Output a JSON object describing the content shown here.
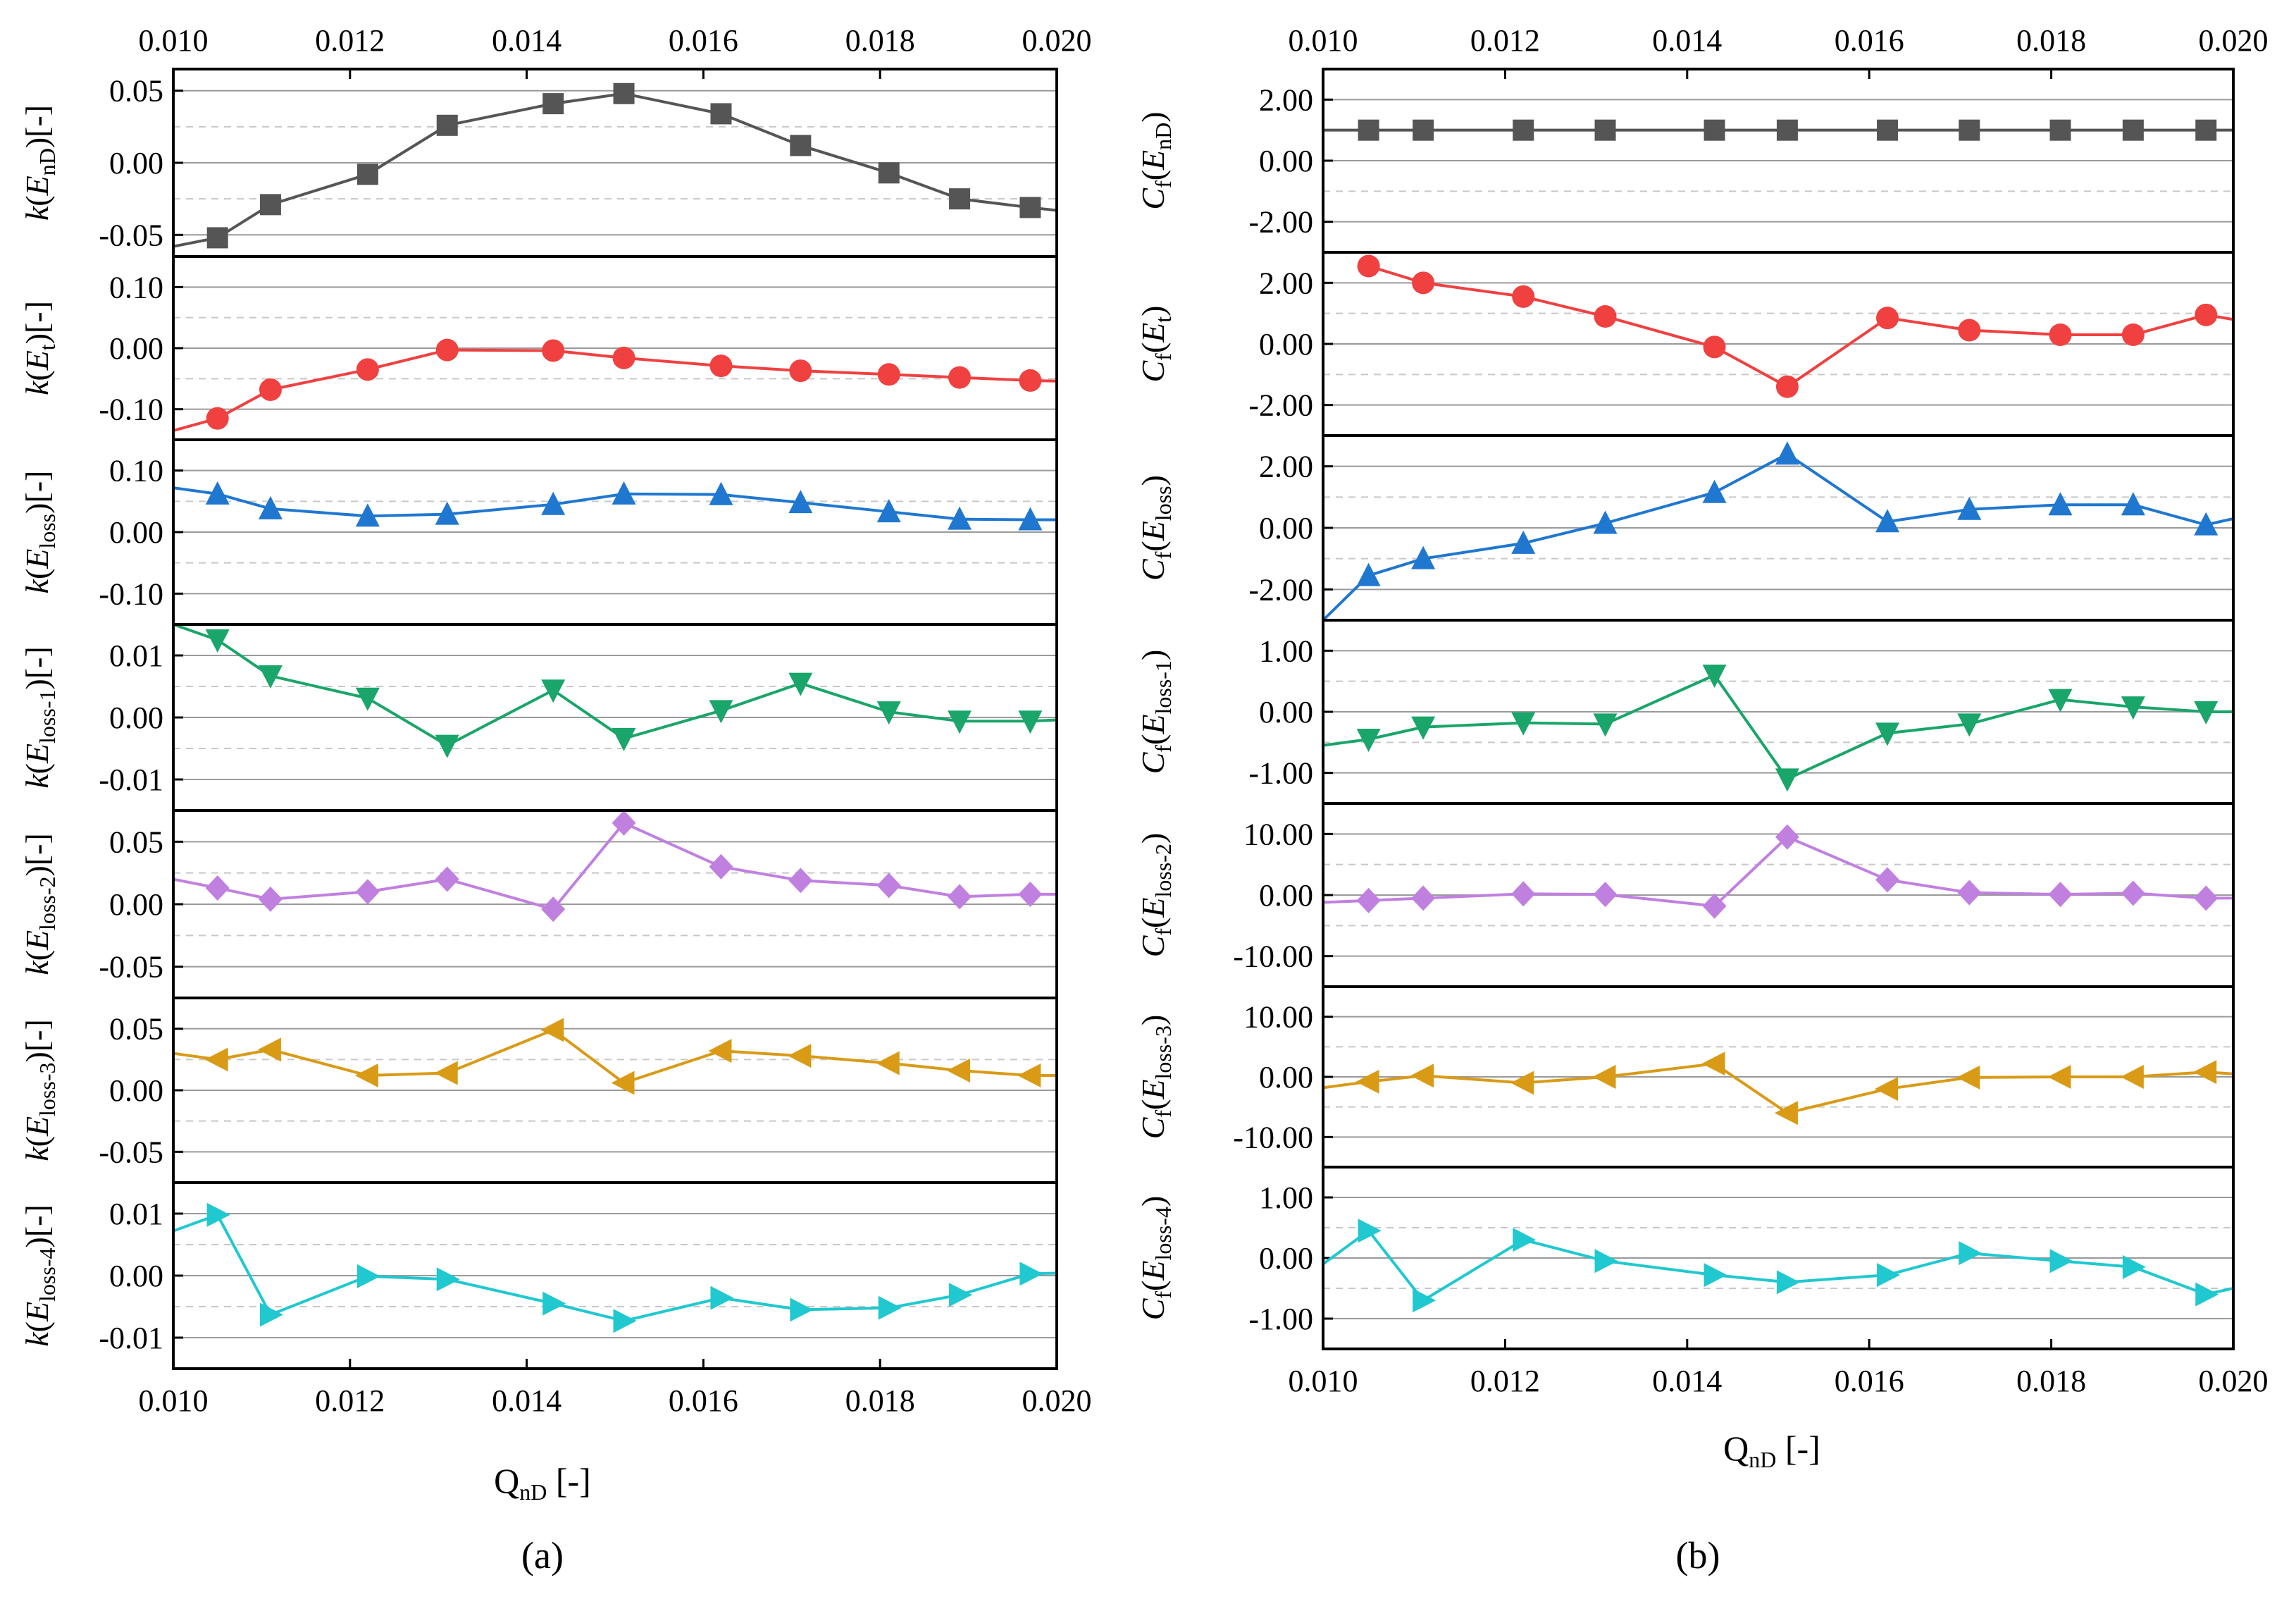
{
  "chart_data": [
    {
      "panel": "a",
      "caption": "(a)",
      "type": "line",
      "x": [
        0.01,
        0.0105,
        0.0111,
        0.0122,
        0.0131,
        0.0143,
        0.0151,
        0.0162,
        0.0171,
        0.0181,
        0.0189,
        0.0197,
        0.02
      ],
      "xlim": [
        0.01,
        0.02
      ],
      "xticks": [
        "0.010",
        "0.012",
        "0.014",
        "0.016",
        "0.018",
        "0.020"
      ],
      "xticks_top": [
        "0.010",
        "0.012",
        "0.014",
        "0.016",
        "0.018",
        "0.020"
      ],
      "xlabel": {
        "main": "Q",
        "sub": "nD",
        "suffix": " [-]"
      },
      "subplots": [
        {
          "ylabel": {
            "pre": "k(",
            "main": "E",
            "sub": "nD",
            "post": ")[-]"
          },
          "ylim": [
            -0.065,
            0.065
          ],
          "yticks": [
            -0.05,
            0.0,
            0.05
          ],
          "yticklabels": [
            "-0.05",
            "0.00",
            "0.05"
          ],
          "color": "#555555",
          "marker": "square",
          "values": [
            -0.058,
            -0.052,
            -0.029,
            -0.008,
            0.026,
            0.041,
            0.048,
            0.034,
            0.012,
            -0.007,
            -0.025,
            -0.031,
            -0.033
          ]
        },
        {
          "ylabel": {
            "pre": "k(",
            "main": "E",
            "sub": "t",
            "post": ")[-]"
          },
          "ylim": [
            -0.15,
            0.15
          ],
          "yticks": [
            -0.1,
            0.0,
            0.1
          ],
          "yticklabels": [
            "-0.10",
            "0.00",
            "0.10"
          ],
          "color": "#f04040",
          "marker": "circle",
          "values": [
            -0.135,
            -0.115,
            -0.068,
            -0.035,
            -0.003,
            -0.004,
            -0.016,
            -0.029,
            -0.037,
            -0.043,
            -0.048,
            -0.053,
            -0.054
          ]
        },
        {
          "ylabel": {
            "pre": "k(",
            "main": "E",
            "sub": "loss",
            "post": ")[-]"
          },
          "ylim": [
            -0.15,
            0.15
          ],
          "yticks": [
            -0.1,
            0.0,
            0.1
          ],
          "yticklabels": [
            "-0.10",
            "0.00",
            "0.10"
          ],
          "color": "#1f77d0",
          "marker": "triangle-up",
          "values": [
            0.072,
            0.062,
            0.038,
            0.026,
            0.029,
            0.045,
            0.062,
            0.061,
            0.048,
            0.033,
            0.021,
            0.02,
            0.02
          ]
        },
        {
          "ylabel": {
            "pre": "k(",
            "main": "E",
            "sub": "loss-1",
            "post": ")[-]"
          },
          "ylim": [
            -0.015,
            0.015
          ],
          "yticks": [
            -0.01,
            0.0,
            0.01
          ],
          "yticklabels": [
            "-0.01",
            "0.00",
            "0.01"
          ],
          "color": "#1aa56a",
          "marker": "triangle-down",
          "values": [
            0.015,
            0.0125,
            0.0067,
            0.0031,
            -0.0045,
            0.0044,
            -0.0034,
            0.0011,
            0.0055,
            0.0009,
            -0.0006,
            -0.0006,
            -0.0004
          ]
        },
        {
          "ylabel": {
            "pre": "k(",
            "main": "E",
            "sub": "loss-2",
            "post": ")[-]"
          },
          "ylim": [
            -0.075,
            0.075
          ],
          "yticks": [
            -0.05,
            0.0,
            0.05
          ],
          "yticklabels": [
            "-0.05",
            "0.00",
            "0.05"
          ],
          "color": "#c080e0",
          "marker": "diamond",
          "values": [
            0.02,
            0.013,
            0.004,
            0.01,
            0.02,
            -0.004,
            0.065,
            0.03,
            0.019,
            0.015,
            0.006,
            0.008,
            0.008
          ]
        },
        {
          "ylabel": {
            "pre": "k(",
            "main": "E",
            "sub": "loss-3",
            "post": ")[-]"
          },
          "ylim": [
            -0.075,
            0.075
          ],
          "yticks": [
            -0.05,
            0.0,
            0.05
          ],
          "yticklabels": [
            "-0.05",
            "0.00",
            "0.05"
          ],
          "color": "#d99a16",
          "marker": "triangle-left",
          "values": [
            0.03,
            0.025,
            0.033,
            0.012,
            0.014,
            0.049,
            0.006,
            0.032,
            0.028,
            0.022,
            0.016,
            0.012,
            0.012
          ]
        },
        {
          "ylabel": {
            "pre": "k(",
            "main": "E",
            "sub": "loss-4",
            "post": ")[-]"
          },
          "ylim": [
            -0.015,
            0.015
          ],
          "yticks": [
            -0.01,
            0.0,
            0.01
          ],
          "yticklabels": [
            "-0.01",
            "0.00",
            "0.01"
          ],
          "color": "#20c8d0",
          "marker": "triangle-right",
          "values": [
            0.0072,
            0.0098,
            -0.0063,
            -0.0001,
            -0.0006,
            -0.0045,
            -0.0073,
            -0.0036,
            -0.0055,
            -0.0052,
            -0.0031,
            0.0003,
            0.0004
          ]
        }
      ]
    },
    {
      "panel": "b",
      "caption": "(b)",
      "type": "line",
      "x": [
        0.01,
        0.0105,
        0.0111,
        0.0122,
        0.0131,
        0.0143,
        0.0151,
        0.0162,
        0.0171,
        0.0181,
        0.0189,
        0.0197,
        0.02
      ],
      "xlim": [
        0.01,
        0.02
      ],
      "xticks": [
        "0.010",
        "0.012",
        "0.014",
        "0.016",
        "0.018",
        "0.020"
      ],
      "xticks_top": [
        "0.010",
        "0.012",
        "0.014",
        "0.016",
        "0.018",
        "0.020"
      ],
      "xlabel": {
        "main": "Q",
        "sub": "nD",
        "suffix": " [-]"
      },
      "subplots": [
        {
          "ylabel": {
            "pre": "C",
            "presub": "f",
            "mid": "(",
            "main": "E",
            "sub": "nD",
            "post": ")"
          },
          "ylim": [
            -3.0,
            3.0
          ],
          "yticks": [
            -2,
            0,
            2
          ],
          "yticklabels": [
            "-2.00",
            "0.00",
            "2.00"
          ],
          "color": "#555555",
          "marker": "square",
          "values": [
            1.0,
            1.0,
            1.0,
            1.0,
            1.0,
            1.0,
            1.0,
            1.0,
            1.0,
            1.0,
            1.0,
            1.0,
            1.0
          ]
        },
        {
          "ylabel": {
            "pre": "C",
            "presub": "f",
            "mid": "(",
            "main": "E",
            "sub": "t",
            "post": ")"
          },
          "ylim": [
            -3.0,
            3.0
          ],
          "yticks": [
            -2,
            0,
            2
          ],
          "yticklabels": [
            "-2.00",
            "0.00",
            "2.00"
          ],
          "color": "#f04040",
          "marker": "circle",
          "values": [
            null,
            2.55,
            2.0,
            1.55,
            0.9,
            -0.1,
            -1.4,
            0.85,
            0.45,
            0.3,
            0.3,
            0.95,
            0.8
          ]
        },
        {
          "ylabel": {
            "pre": "C",
            "presub": "f",
            "mid": "(",
            "main": "E",
            "sub": "loss",
            "post": ")"
          },
          "ylim": [
            -3.0,
            3.0
          ],
          "yticks": [
            -2,
            0,
            2
          ],
          "yticklabels": [
            "-2.00",
            "0.00",
            "2.00"
          ],
          "color": "#1f77d0",
          "marker": "triangle-up",
          "values": [
            -3.0,
            -1.55,
            -1.0,
            -0.5,
            0.15,
            1.15,
            2.4,
            0.2,
            0.6,
            0.75,
            0.75,
            0.1,
            0.3
          ]
        },
        {
          "ylabel": {
            "pre": "C",
            "presub": "f",
            "mid": "(",
            "main": "E",
            "sub": "loss-1",
            "post": ")"
          },
          "ylim": [
            -1.5,
            1.5
          ],
          "yticks": [
            -1,
            0,
            1
          ],
          "yticklabels": [
            "-1.00",
            "0.00",
            "1.00"
          ],
          "color": "#1aa56a",
          "marker": "triangle-down",
          "values": [
            -0.55,
            -0.45,
            -0.25,
            -0.18,
            -0.2,
            0.6,
            -1.1,
            -0.35,
            -0.2,
            0.2,
            0.08,
            0.0,
            0.0
          ]
        },
        {
          "ylabel": {
            "pre": "C",
            "presub": "f",
            "mid": "(",
            "main": "E",
            "sub": "loss-2",
            "post": ")"
          },
          "ylim": [
            -15,
            15
          ],
          "yticks": [
            -10,
            0,
            10
          ],
          "yticklabels": [
            "-10.00",
            "0.00",
            "10.00"
          ],
          "color": "#c080e0",
          "marker": "diamond",
          "values": [
            -1.2,
            -0.9,
            -0.5,
            0.2,
            0.1,
            -1.8,
            9.5,
            2.5,
            0.4,
            0.1,
            0.3,
            -0.5,
            -0.5
          ]
        },
        {
          "ylabel": {
            "pre": "C",
            "presub": "f",
            "mid": "(",
            "main": "E",
            "sub": "loss-3",
            "post": ")"
          },
          "ylim": [
            -15,
            15
          ],
          "yticks": [
            -10,
            0,
            10
          ],
          "yticklabels": [
            "-10.00",
            "0.00",
            "10.00"
          ],
          "color": "#d99a16",
          "marker": "triangle-left",
          "values": [
            -1.8,
            -0.8,
            0.2,
            -1.0,
            0.0,
            2.2,
            -6.0,
            -2.0,
            -0.1,
            0.0,
            0.0,
            0.8,
            0.5
          ]
        },
        {
          "ylabel": {
            "pre": "C",
            "presub": "f",
            "mid": "(",
            "main": "E",
            "sub": "loss-4",
            "post": ")"
          },
          "ylim": [
            -1.5,
            1.5
          ],
          "yticks": [
            -1,
            0,
            1
          ],
          "yticklabels": [
            "-1.00",
            "0.00",
            "1.00"
          ],
          "color": "#20c8d0",
          "marker": "triangle-right",
          "values": [
            -0.1,
            0.45,
            -0.7,
            0.3,
            -0.05,
            -0.28,
            -0.4,
            -0.28,
            0.08,
            -0.05,
            -0.15,
            -0.6,
            -0.5
          ]
        }
      ]
    }
  ]
}
